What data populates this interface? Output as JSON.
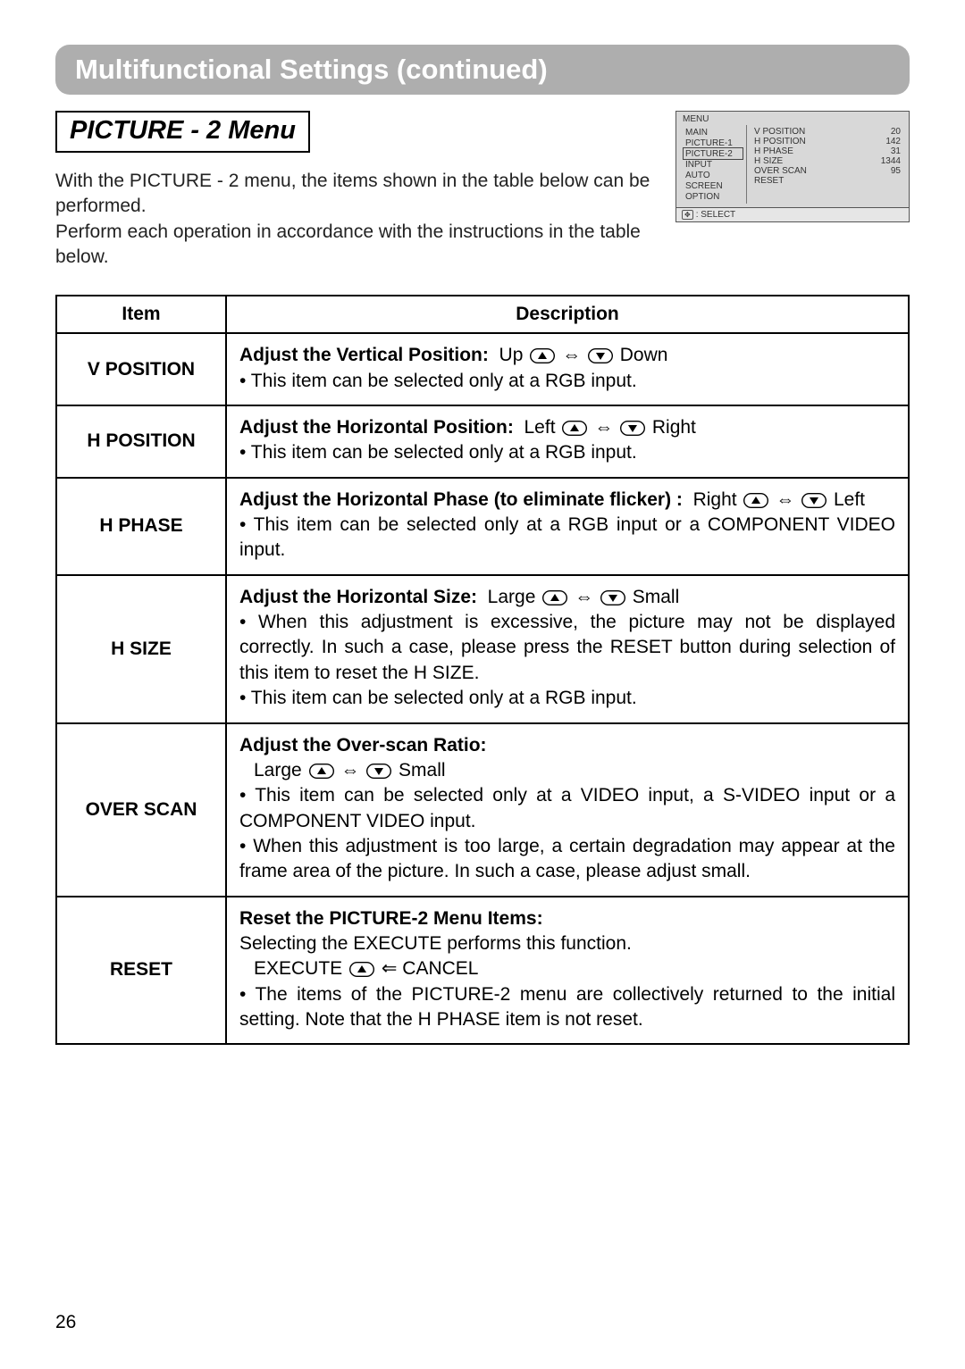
{
  "banner": "Multifunctional Settings (continued)",
  "submenu_title": "PICTURE - 2 Menu",
  "intro_line1": "With the PICTURE - 2 menu, the items shown in the table below can be performed.",
  "intro_line2": "Perform each operation in accordance with the instructions in the table below.",
  "menu_widget": {
    "title": "MENU",
    "left_items": [
      "MAIN",
      "PICTURE-1",
      "PICTURE-2",
      "INPUT",
      "AUTO",
      "SCREEN",
      "OPTION"
    ],
    "selected_index": 2,
    "right_rows": [
      {
        "label": "V POSITION",
        "value": "20"
      },
      {
        "label": "H POSITION",
        "value": "142"
      },
      {
        "label": "H PHASE",
        "value": "31"
      },
      {
        "label": "H SIZE",
        "value": "1344"
      },
      {
        "label": "OVER SCAN",
        "value": "95"
      },
      {
        "label": "RESET",
        "value": ""
      }
    ],
    "footer": ": SELECT"
  },
  "table": {
    "header_item": "Item",
    "header_desc": "Description",
    "rows": [
      {
        "item": "V POSITION",
        "title": "Adjust the Vertical Position:",
        "dir_left": "Up",
        "dir_right": "Down",
        "notes": [
          "This item can be selected only at a RGB input."
        ]
      },
      {
        "item": "H POSITION",
        "title": "Adjust the Horizontal Position:",
        "dir_left": "Left",
        "dir_right": "Right",
        "notes": [
          "This item can be selected only at a RGB input."
        ]
      },
      {
        "item": "H PHASE",
        "title": "Adjust the Horizontal Phase (to eliminate flicker) :",
        "dir_left": "Right",
        "dir_right": "Left",
        "notes": [
          "This item can be selected only at a RGB input or a COMPONENT VIDEO input."
        ]
      },
      {
        "item": "H SIZE",
        "title": "Adjust the Horizontal Size:",
        "dir_left": "Large",
        "dir_right": "Small",
        "notes": [
          "When this adjustment is excessive, the picture may not be displayed correctly. In such a case, please press the RESET button during selection of this item to reset the H SIZE.",
          "This item can be selected only at a RGB input."
        ]
      },
      {
        "item": "OVER SCAN",
        "title": "Adjust the Over-scan Ratio:",
        "dir_left": "Large",
        "dir_right": "Small",
        "dir_on_new_line": true,
        "notes": [
          "This item can be selected only at a VIDEO input, a S-VIDEO input or a COMPONENT VIDEO input.",
          "When this adjustment is too large, a certain degradation may appear at the frame area of the picture. In such a case, please adjust small."
        ]
      },
      {
        "item": "RESET",
        "title": "Reset the PICTURE-2 Menu Items:",
        "subtitle": "Selecting the EXECUTE performs this function.",
        "exec_left": "EXECUTE",
        "exec_right": "CANCEL",
        "notes": [
          "The items of the PICTURE-2 menu are collectively returned to the initial setting. Note that the H PHASE item is not reset."
        ]
      }
    ]
  },
  "page_number": "26"
}
